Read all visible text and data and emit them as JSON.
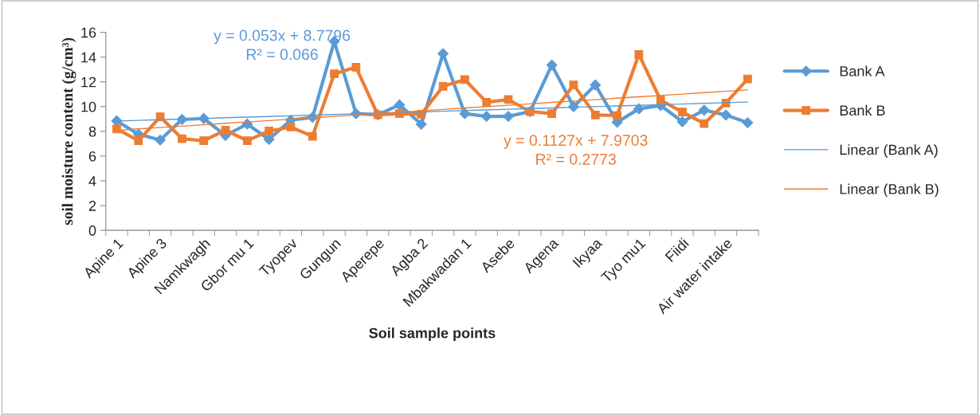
{
  "chart_data": {
    "type": "line",
    "xlabel": "Soil sample points",
    "ylabel": "soil moisture content (g/cm³)",
    "categories": [
      "Apine 1",
      null,
      "Apine 3",
      null,
      "Namkwagh",
      null,
      "Gbor mu 1",
      null,
      "Tyopev",
      null,
      "Gungun",
      null,
      "Aperepe",
      null,
      "Agba 2",
      null,
      "Mbakwadan 1",
      null,
      "Asebe",
      null,
      "Agena",
      null,
      "Ikyaa",
      null,
      "Tyo mu1",
      null,
      "Fiidi",
      null,
      "Air water intake",
      null
    ],
    "series": [
      {
        "name": "Bank A",
        "color": "#5b9bd5",
        "marker": "diamond",
        "values": [
          8.85,
          7.77,
          7.3,
          8.96,
          9.04,
          7.67,
          8.59,
          7.35,
          8.91,
          9.13,
          15.27,
          9.43,
          9.34,
          10.14,
          8.57,
          14.28,
          9.43,
          9.21,
          9.21,
          9.6,
          13.36,
          9.99,
          11.75,
          8.74,
          9.82,
          10.09,
          8.78,
          9.71,
          9.32,
          8.7
        ]
      },
      {
        "name": "Bank B",
        "color": "#ed7d31",
        "marker": "square",
        "values": [
          8.2,
          7.24,
          9.17,
          7.41,
          7.24,
          8.1,
          7.24,
          8.03,
          8.35,
          7.6,
          12.65,
          13.19,
          9.34,
          9.43,
          9.39,
          11.64,
          12.18,
          10.35,
          10.57,
          9.6,
          9.43,
          11.75,
          9.32,
          9.28,
          14.22,
          10.52,
          9.56,
          8.63,
          10.29,
          12.24
        ]
      },
      {
        "name": "Linear (Bank A)",
        "color": "#5b9bd5",
        "marker": "none",
        "values": [
          8.83,
          8.89,
          8.94,
          8.99,
          9.04,
          9.1,
          9.15,
          9.2,
          9.26,
          9.31,
          9.36,
          9.42,
          9.47,
          9.52,
          9.57,
          9.63,
          9.68,
          9.73,
          9.79,
          9.84,
          9.89,
          9.95,
          10.0,
          10.05,
          10.1,
          10.16,
          10.21,
          10.26,
          10.32,
          10.37
        ]
      },
      {
        "name": "Linear (Bank B)",
        "color": "#ed7d31",
        "marker": "none",
        "values": [
          8.08,
          8.2,
          8.31,
          8.42,
          8.53,
          8.65,
          8.76,
          8.87,
          8.98,
          9.1,
          9.21,
          9.32,
          9.44,
          9.55,
          9.66,
          9.77,
          9.89,
          10.0,
          10.11,
          10.22,
          10.34,
          10.45,
          10.56,
          10.68,
          10.79,
          10.9,
          11.01,
          11.13,
          11.24,
          11.35
        ]
      }
    ],
    "annotations": [
      "y = 0.053x + 8.7796\nR² = 0.066",
      "y = 0.1127x + 7.9703\nR² = 0.2773"
    ],
    "ylim": [
      0,
      16
    ],
    "yticks": [
      0,
      2,
      4,
      6,
      8,
      10,
      12,
      14,
      16
    ],
    "grid": false,
    "legend": "right"
  }
}
